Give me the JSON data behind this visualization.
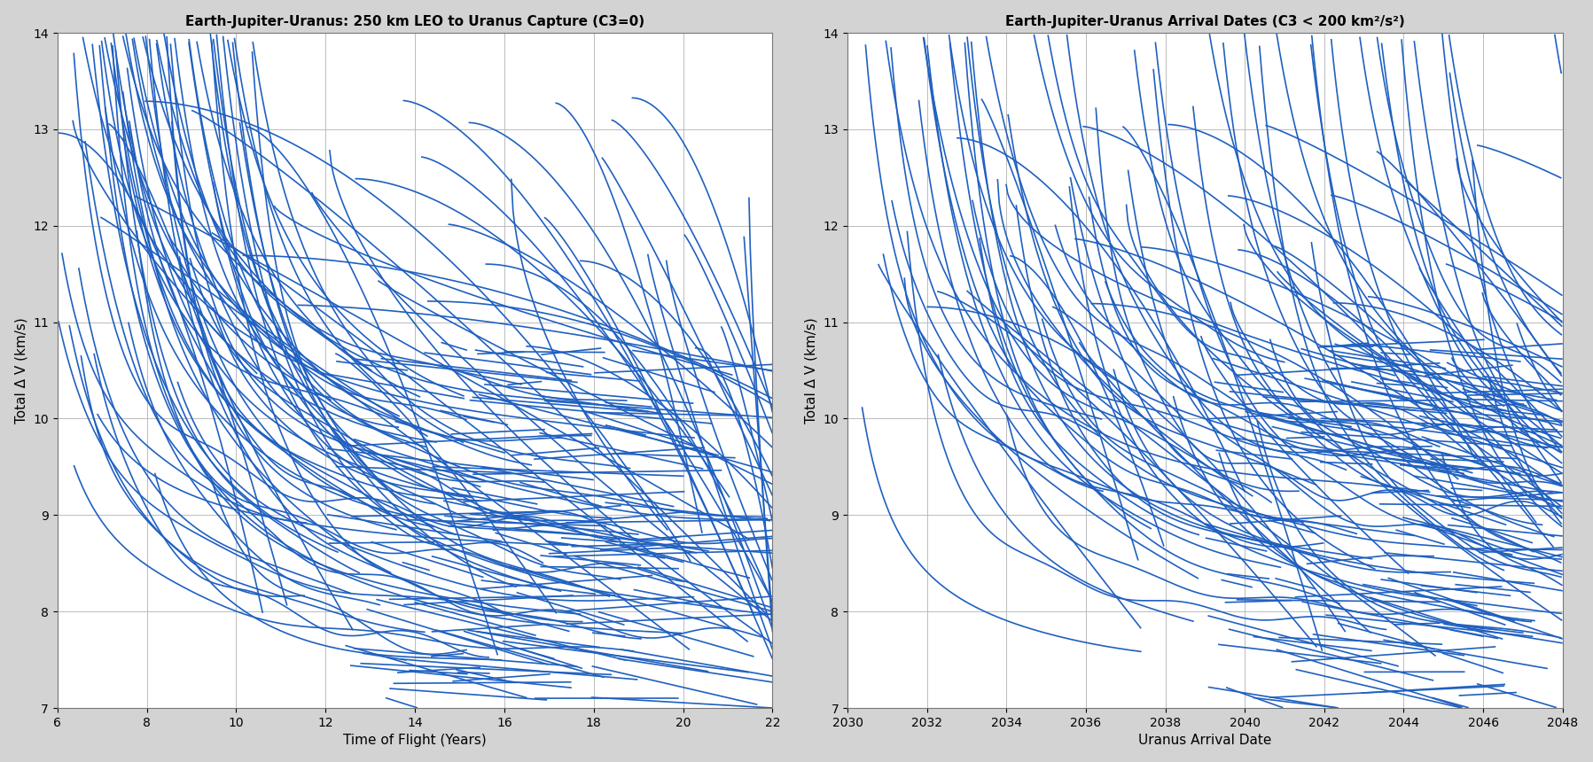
{
  "left_title": "Earth-Jupiter-Uranus: 250 km LEO to Uranus Capture (C3=0)",
  "right_title": "Earth-Jupiter-Uranus Arrival Dates (C3 < 200 km²/s²)",
  "left_xlabel": "Time of Flight (Years)",
  "right_xlabel": "Uranus Arrival Date",
  "ylabel": "Total Δ V (km/s)",
  "left_xlim": [
    6,
    22
  ],
  "right_xlim": [
    2030,
    2048
  ],
  "ylim": [
    7,
    14
  ],
  "left_xticks": [
    6,
    8,
    10,
    12,
    14,
    16,
    18,
    20,
    22
  ],
  "right_xticks": [
    2030,
    2032,
    2034,
    2036,
    2038,
    2040,
    2042,
    2044,
    2046,
    2048
  ],
  "yticks": [
    7,
    8,
    9,
    10,
    11,
    12,
    13,
    14
  ],
  "line_color": "#2060c0",
  "bg_color": "#d3d3d3",
  "axes_bg": "#ffffff",
  "fig_width": 17.97,
  "fig_height": 8.6
}
